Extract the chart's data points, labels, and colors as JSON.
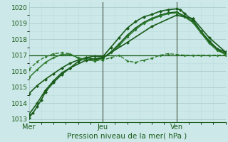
{
  "background_color": "#cce8e8",
  "grid_color_major": "#aacccc",
  "grid_color_minor": "#bbdddd",
  "line_color_dark": "#1a5c1a",
  "line_color_medium": "#2d7a2d",
  "xlabel": "Pression niveau de la mer( hPa )",
  "ylim": [
    1012.8,
    1020.3
  ],
  "yticks": [
    1013,
    1014,
    1015,
    1016,
    1017,
    1018,
    1019,
    1020
  ],
  "xlim": [
    0,
    48
  ],
  "xtick_positions": [
    0,
    18,
    36
  ],
  "xtick_labels": [
    "Mer",
    "Jeu",
    "Ven"
  ],
  "vlines": [
    18,
    36
  ],
  "series": [
    {
      "x": [
        0,
        1,
        2,
        3,
        4,
        6,
        8,
        10,
        12,
        14,
        16,
        18,
        20,
        22,
        24,
        26,
        28,
        30,
        32,
        34,
        36,
        37,
        38,
        40,
        42,
        44,
        46,
        48
      ],
      "y": [
        1013.1,
        1013.4,
        1013.8,
        1014.2,
        1014.7,
        1015.3,
        1015.8,
        1016.2,
        1016.6,
        1016.85,
        1016.95,
        1016.9,
        1017.5,
        1018.1,
        1018.7,
        1019.1,
        1019.4,
        1019.55,
        1019.75,
        1019.85,
        1019.9,
        1019.85,
        1019.6,
        1019.2,
        1018.5,
        1017.9,
        1017.4,
        1017.2
      ],
      "lw": 1.2,
      "dashed": false,
      "color": "#1a5c1a",
      "marker": "D",
      "ms": 2.5
    },
    {
      "x": [
        0,
        2,
        4,
        6,
        8,
        10,
        12,
        14,
        16,
        18,
        20,
        22,
        24,
        26,
        28,
        30,
        32,
        34,
        36,
        38,
        40,
        42,
        44,
        46,
        48
      ],
      "y": [
        1014.6,
        1015.1,
        1015.5,
        1015.85,
        1016.2,
        1016.5,
        1016.7,
        1016.85,
        1016.75,
        1016.8,
        1017.2,
        1017.7,
        1018.25,
        1018.7,
        1019.05,
        1019.3,
        1019.5,
        1019.65,
        1019.7,
        1019.45,
        1019.1,
        1018.45,
        1017.8,
        1017.35,
        1017.1
      ],
      "lw": 1.2,
      "dashed": false,
      "color": "#1a5c1a",
      "marker": "D",
      "ms": 2.5
    },
    {
      "x": [
        0,
        2,
        4,
        6,
        8,
        10,
        12,
        14,
        16,
        18,
        20,
        22,
        24,
        26,
        28,
        30,
        32,
        34,
        36,
        38,
        40,
        42,
        44,
        46,
        48
      ],
      "y": [
        1016.1,
        1016.6,
        1016.9,
        1017.1,
        1017.15,
        1017.1,
        1016.8,
        1016.7,
        1016.65,
        1016.7,
        1016.85,
        1017.0,
        1016.65,
        1016.55,
        1016.7,
        1016.8,
        1017.0,
        1017.1,
        1017.05,
        1017.0,
        1017.0,
        1017.0,
        1017.0,
        1017.0,
        1017.0
      ],
      "lw": 1.0,
      "dashed": true,
      "color": "#2d7a2d",
      "marker": "D",
      "ms": 2.0
    },
    {
      "x": [
        0,
        2,
        4,
        6,
        8,
        10,
        12,
        14,
        16,
        18,
        20,
        22,
        24,
        26,
        28,
        30,
        32,
        34,
        36,
        38,
        40,
        42,
        44,
        46,
        48
      ],
      "y": [
        1015.6,
        1016.1,
        1016.55,
        1016.85,
        1017.05,
        1017.05,
        1016.85,
        1016.7,
        1016.65,
        1016.8,
        1017.15,
        1017.6,
        1018.15,
        1018.6,
        1019.0,
        1019.25,
        1019.45,
        1019.6,
        1019.65,
        1019.4,
        1019.05,
        1018.4,
        1017.75,
        1017.3,
        1017.05
      ],
      "lw": 1.1,
      "dashed": false,
      "color": "#2d7a2d",
      "marker": "D",
      "ms": 2.0
    },
    {
      "x": [
        0,
        6,
        12,
        18,
        24,
        30,
        36,
        42,
        48
      ],
      "y": [
        1017.0,
        1017.0,
        1017.0,
        1017.0,
        1017.0,
        1017.0,
        1017.0,
        1017.0,
        1017.0
      ],
      "lw": 0.9,
      "dashed": false,
      "color": "#1a5c1a",
      "marker": null,
      "ms": 0
    },
    {
      "x": [
        0,
        2,
        4,
        6,
        8,
        10,
        14,
        18,
        24,
        30,
        36,
        40,
        44,
        48
      ],
      "y": [
        1013.3,
        1014.0,
        1014.8,
        1015.4,
        1015.9,
        1016.2,
        1016.7,
        1016.85,
        1017.8,
        1018.8,
        1019.5,
        1019.3,
        1018.1,
        1017.2
      ],
      "lw": 1.2,
      "dashed": false,
      "color": "#1a5c1a",
      "marker": "D",
      "ms": 2.5
    }
  ]
}
